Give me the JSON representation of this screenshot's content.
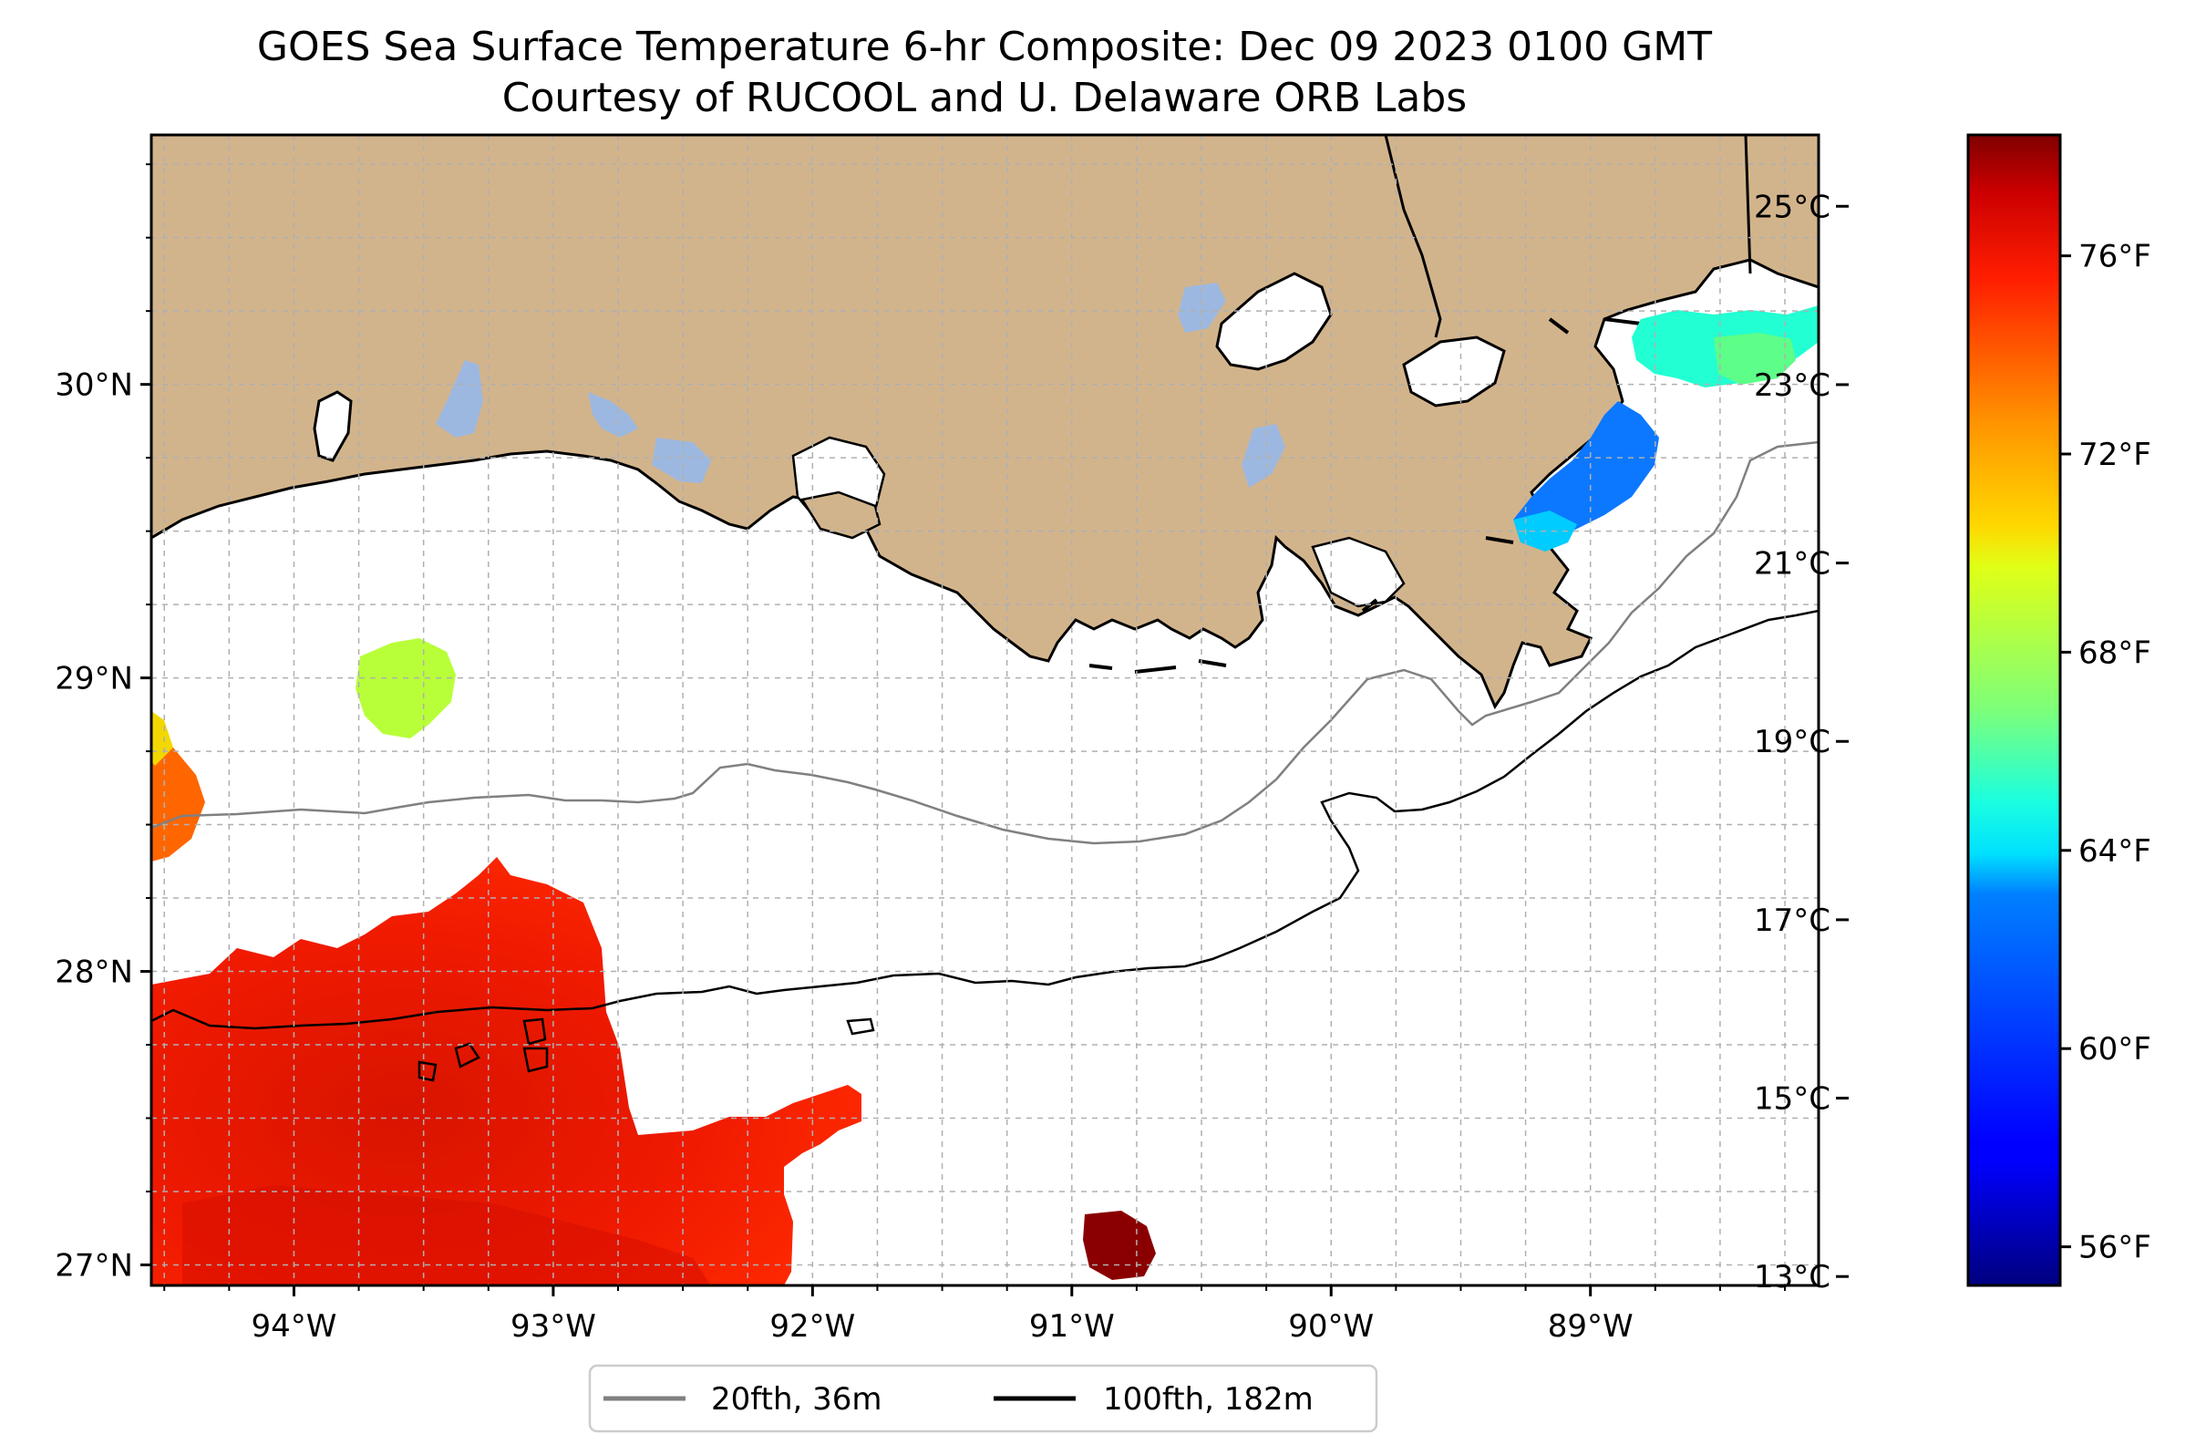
{
  "title": {
    "line1": "GOES Sea Surface Temperature 6-hr Composite: Dec 09 2023 0100 GMT",
    "line2": "Courtesy of RUCOOL and U. Delaware ORB Labs"
  },
  "map": {
    "lon_range": [
      -94.55,
      -88.12
    ],
    "lat_range": [
      26.93,
      30.85
    ],
    "lon_ticks": [
      {
        "value": -94,
        "label": "94°W"
      },
      {
        "value": -93,
        "label": "93°W"
      },
      {
        "value": -92,
        "label": "92°W"
      },
      {
        "value": -91,
        "label": "91°W"
      },
      {
        "value": -90,
        "label": "90°W"
      },
      {
        "value": -89,
        "label": "89°W"
      }
    ],
    "lat_ticks": [
      {
        "value": 27,
        "label": "27°N"
      },
      {
        "value": 28,
        "label": "28°N"
      },
      {
        "value": 29,
        "label": "29°N"
      },
      {
        "value": 30,
        "label": "30°N"
      }
    ],
    "gridlines": true,
    "colors": {
      "land": "#d2b48c",
      "lakes": "#9db8e0",
      "ocean": "#ffffff",
      "contour_20fth": "#808080",
      "contour_100fth": "#000000"
    }
  },
  "colorbar": {
    "colormap": "jet",
    "celsius_range": [
      12.9,
      25.8
    ],
    "celsius_ticks": [
      {
        "value": 13,
        "label": "13°C"
      },
      {
        "value": 15,
        "label": "15°C"
      },
      {
        "value": 17,
        "label": "17°C"
      },
      {
        "value": 19,
        "label": "19°C"
      },
      {
        "value": 21,
        "label": "21°C"
      },
      {
        "value": 23,
        "label": "23°C"
      },
      {
        "value": 25,
        "label": "25°C"
      }
    ],
    "fahrenheit_ticks": [
      {
        "value": 56,
        "label": "56°F"
      },
      {
        "value": 60,
        "label": "60°F"
      },
      {
        "value": 64,
        "label": "64°F"
      },
      {
        "value": 68,
        "label": "68°F"
      },
      {
        "value": 72,
        "label": "72°F"
      },
      {
        "value": 76,
        "label": "76°F"
      }
    ]
  },
  "legend": {
    "items": [
      {
        "label": "20fth, 36m",
        "color": "#808080"
      },
      {
        "label": "100fth, 182m",
        "color": "#000000"
      }
    ]
  }
}
